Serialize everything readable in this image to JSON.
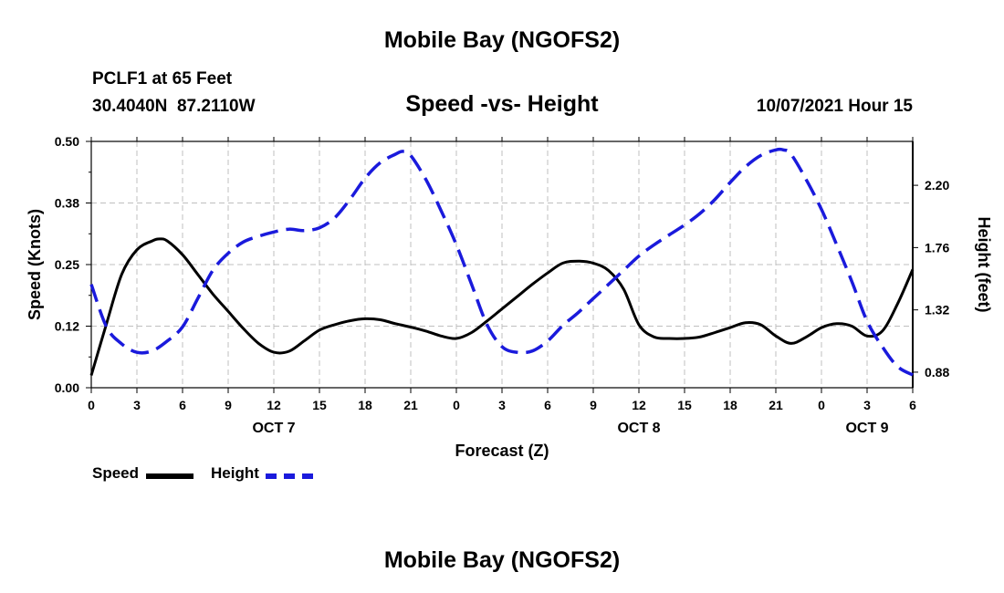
{
  "page": {
    "title": "Mobile Bay (NGOFS2)",
    "footer_title": "Mobile Bay (NGOFS2)",
    "station": "PCLF1 at 65 Feet",
    "coords": "30.4040N  87.2110W",
    "subtitle": "Speed -vs- Height",
    "datetime": "10/07/2021 Hour 15"
  },
  "colors": {
    "speed": "#000000",
    "height": "#1a1adc",
    "grid": "#bfbfbf"
  },
  "chart_data": {
    "type": "line",
    "title": "Speed -vs- Height",
    "xlabel": "Forecast (Z)",
    "ylabel_left": "Speed (Knots)",
    "ylabel_right": "Height (feet)",
    "x_unit": "hours from Oct 7 00Z",
    "xlim": [
      0,
      54
    ],
    "x_ticks": [
      0,
      3,
      6,
      9,
      12,
      15,
      18,
      21,
      24,
      27,
      30,
      33,
      36,
      39,
      42,
      45,
      48,
      51,
      54
    ],
    "x_tick_labels": [
      "0",
      "3",
      "6",
      "9",
      "12",
      "15",
      "18",
      "21",
      "0",
      "3",
      "6",
      "9",
      "12",
      "15",
      "18",
      "21",
      "0",
      "3",
      "6"
    ],
    "day_labels": [
      {
        "x": 12,
        "label": "OCT 7"
      },
      {
        "x": 36,
        "label": "OCT 8"
      },
      {
        "x": 51,
        "label": "OCT 9"
      }
    ],
    "ylim_left": [
      0,
      0.5
    ],
    "y_ticks_left": [
      0,
      0.125,
      0.25,
      0.375,
      0.5
    ],
    "y_tick_labels_left": [
      "0.00",
      "0.12",
      "0.25",
      "0.38",
      "0.50"
    ],
    "ylim_right": [
      0.77,
      2.51
    ],
    "y_ticks_right": [
      0.88,
      1.32,
      1.76,
      2.2
    ],
    "y_tick_labels_right": [
      "0.88",
      "1.32",
      "1.76",
      "2.20"
    ],
    "grid": true,
    "series": [
      {
        "name": "Speed",
        "axis": "left",
        "style": "solid",
        "x": [
          0,
          1,
          2,
          3,
          4,
          4.5,
          5,
          6,
          7,
          8,
          9,
          10,
          11,
          12,
          13,
          14,
          15,
          16,
          17,
          18,
          19,
          20,
          21,
          22,
          23,
          24,
          25,
          26,
          27,
          28,
          29,
          30,
          31,
          32,
          33,
          34,
          35,
          36,
          37,
          38,
          39,
          40,
          41,
          42,
          43,
          44,
          45,
          46,
          47,
          48,
          49,
          50,
          51,
          52,
          53,
          54
        ],
        "values": [
          0.025,
          0.13,
          0.23,
          0.28,
          0.298,
          0.302,
          0.298,
          0.27,
          0.23,
          0.19,
          0.155,
          0.12,
          0.09,
          0.072,
          0.074,
          0.095,
          0.117,
          0.128,
          0.136,
          0.14,
          0.138,
          0.13,
          0.123,
          0.115,
          0.105,
          0.1,
          0.112,
          0.135,
          0.16,
          0.185,
          0.21,
          0.233,
          0.253,
          0.257,
          0.253,
          0.238,
          0.2,
          0.128,
          0.103,
          0.1,
          0.1,
          0.103,
          0.112,
          0.122,
          0.132,
          0.128,
          0.105,
          0.09,
          0.103,
          0.122,
          0.13,
          0.125,
          0.105,
          0.115,
          0.17,
          0.24
        ]
      },
      {
        "name": "Height",
        "axis": "right",
        "style": "dashed",
        "x": [
          0,
          1,
          2,
          3,
          4,
          5,
          6,
          7,
          8,
          9,
          10,
          11,
          12,
          13,
          14,
          15,
          16,
          17,
          18,
          19,
          20,
          20.5,
          21,
          22,
          23,
          24,
          25,
          26,
          27,
          28,
          29,
          30,
          31,
          32,
          33,
          34,
          35,
          36,
          37,
          38,
          39,
          40,
          41,
          42,
          43,
          44,
          45,
          45.5,
          46,
          47,
          48,
          49,
          50,
          51,
          52,
          53,
          54
        ],
        "values": [
          1.5,
          1.2,
          1.08,
          1.02,
          1.03,
          1.1,
          1.2,
          1.4,
          1.6,
          1.72,
          1.8,
          1.84,
          1.87,
          1.89,
          1.88,
          1.9,
          1.97,
          2.1,
          2.25,
          2.36,
          2.42,
          2.44,
          2.41,
          2.24,
          2.02,
          1.78,
          1.5,
          1.22,
          1.06,
          1.02,
          1.03,
          1.1,
          1.21,
          1.3,
          1.4,
          1.5,
          1.6,
          1.7,
          1.78,
          1.85,
          1.92,
          2.0,
          2.1,
          2.22,
          2.33,
          2.41,
          2.45,
          2.45,
          2.42,
          2.24,
          2.03,
          1.78,
          1.52,
          1.24,
          1.06,
          0.92,
          0.86
        ]
      }
    ]
  }
}
